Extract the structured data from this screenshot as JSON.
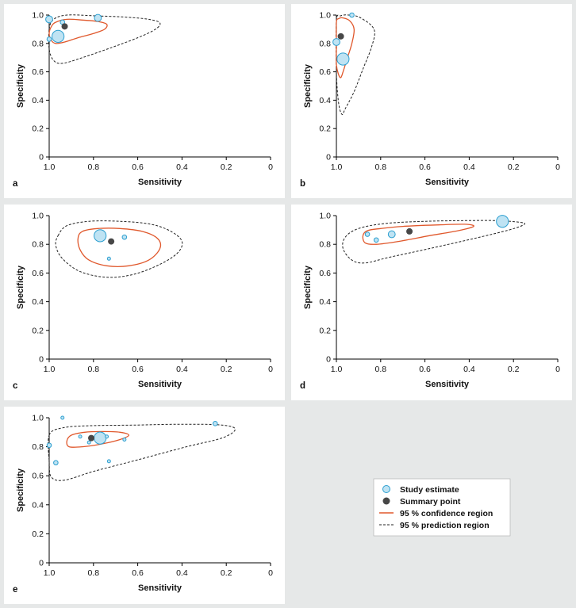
{
  "colors": {
    "background": "#e6e8e8",
    "panel": "#ffffff",
    "study_fill": "#bfe3f3",
    "study_stroke": "#2c9fd0",
    "summary": "#474747",
    "confidence": "#e0582c",
    "prediction": "#222222"
  },
  "legend": {
    "items": [
      {
        "label": "Study estimate",
        "kind": "study"
      },
      {
        "label": "Summary point",
        "kind": "summary"
      },
      {
        "label": "95 % confidence region",
        "kind": "confidence"
      },
      {
        "label": "95 % prediction region",
        "kind": "prediction"
      }
    ]
  },
  "chart_data": [
    {
      "type": "scatter",
      "panel_label": "a",
      "xlabel": "Sensitivity",
      "ylabel": "Specificity",
      "xlim": [
        1.0,
        0
      ],
      "ylim": [
        0,
        1.0
      ],
      "x_ticks": [
        "1.0",
        "0.8",
        "0.6",
        "0.4",
        "0.2",
        "0"
      ],
      "y_ticks": [
        "0",
        "0.2",
        "0.4",
        "0.6",
        "0.8",
        "1.0"
      ],
      "studies": [
        {
          "x": 1.0,
          "y": 0.97,
          "weight": 2
        },
        {
          "x": 0.78,
          "y": 0.98,
          "weight": 2
        },
        {
          "x": 0.94,
          "y": 0.95,
          "weight": 1
        },
        {
          "x": 1.0,
          "y": 0.83,
          "weight": 1
        },
        {
          "x": 0.96,
          "y": 0.85,
          "weight": 4
        }
      ],
      "summary": {
        "x": 0.93,
        "y": 0.92
      },
      "confidence_region": [
        [
          0.99,
          0.92
        ],
        [
          0.97,
          0.95
        ],
        [
          0.92,
          0.97
        ],
        [
          0.85,
          0.965
        ],
        [
          0.78,
          0.955
        ],
        [
          0.74,
          0.935
        ],
        [
          0.75,
          0.9
        ],
        [
          0.8,
          0.87
        ],
        [
          0.87,
          0.84
        ],
        [
          0.93,
          0.81
        ],
        [
          0.97,
          0.8
        ],
        [
          0.99,
          0.82
        ],
        [
          1.0,
          0.87
        ]
      ],
      "prediction_region": [
        [
          1.0,
          0.9
        ],
        [
          0.98,
          0.97
        ],
        [
          0.92,
          1.0
        ],
        [
          0.8,
          0.995
        ],
        [
          0.65,
          0.985
        ],
        [
          0.55,
          0.97
        ],
        [
          0.5,
          0.945
        ],
        [
          0.52,
          0.9
        ],
        [
          0.6,
          0.84
        ],
        [
          0.72,
          0.77
        ],
        [
          0.85,
          0.7
        ],
        [
          0.94,
          0.66
        ],
        [
          0.98,
          0.68
        ],
        [
          1.0,
          0.76
        ]
      ]
    },
    {
      "type": "scatter",
      "panel_label": "b",
      "xlabel": "Sensitivity",
      "ylabel": "Specificity",
      "xlim": [
        1.0,
        0
      ],
      "ylim": [
        0,
        1.0
      ],
      "x_ticks": [
        "1.0",
        "0.8",
        "0.6",
        "0.4",
        "0.2",
        "0"
      ],
      "y_ticks": [
        "0",
        "0.2",
        "0.4",
        "0.6",
        "0.8",
        "1.0"
      ],
      "studies": [
        {
          "x": 0.93,
          "y": 1.0,
          "weight": 1
        },
        {
          "x": 1.0,
          "y": 0.81,
          "weight": 2
        },
        {
          "x": 0.97,
          "y": 0.69,
          "weight": 4
        }
      ],
      "summary": {
        "x": 0.98,
        "y": 0.85
      },
      "confidence_region": [
        [
          1.0,
          0.95
        ],
        [
          0.99,
          0.975
        ],
        [
          0.97,
          0.98
        ],
        [
          0.94,
          0.96
        ],
        [
          0.92,
          0.9
        ],
        [
          0.93,
          0.8
        ],
        [
          0.95,
          0.7
        ],
        [
          0.97,
          0.6
        ],
        [
          0.98,
          0.56
        ],
        [
          0.99,
          0.58
        ],
        [
          1.0,
          0.65
        ],
        [
          1.0,
          0.8
        ]
      ],
      "prediction_region": [
        [
          1.0,
          0.96
        ],
        [
          0.98,
          0.995
        ],
        [
          0.94,
          1.0
        ],
        [
          0.89,
          0.98
        ],
        [
          0.83,
          0.9
        ],
        [
          0.84,
          0.78
        ],
        [
          0.88,
          0.62
        ],
        [
          0.92,
          0.46
        ],
        [
          0.96,
          0.34
        ],
        [
          0.975,
          0.3
        ],
        [
          0.99,
          0.38
        ],
        [
          1.0,
          0.6
        ]
      ]
    },
    {
      "type": "scatter",
      "panel_label": "c",
      "xlabel": "Sensitivity",
      "ylabel": "Specificity",
      "xlim": [
        1.0,
        0
      ],
      "ylim": [
        0,
        1.0
      ],
      "x_ticks": [
        "1.0",
        "0.8",
        "0.6",
        "0.4",
        "0.2",
        "0"
      ],
      "y_ticks": [
        "0",
        "0.2",
        "0.4",
        "0.6",
        "0.8",
        "1.0"
      ],
      "studies": [
        {
          "x": 0.77,
          "y": 0.86,
          "weight": 4
        },
        {
          "x": 0.66,
          "y": 0.85,
          "weight": 1
        },
        {
          "x": 0.73,
          "y": 0.7,
          "weight": 0.5
        }
      ],
      "summary": {
        "x": 0.72,
        "y": 0.82
      },
      "confidence_region": [
        [
          0.87,
          0.84
        ],
        [
          0.85,
          0.89
        ],
        [
          0.78,
          0.91
        ],
        [
          0.68,
          0.91
        ],
        [
          0.58,
          0.89
        ],
        [
          0.51,
          0.84
        ],
        [
          0.5,
          0.77
        ],
        [
          0.55,
          0.69
        ],
        [
          0.64,
          0.65
        ],
        [
          0.74,
          0.65
        ],
        [
          0.82,
          0.69
        ],
        [
          0.86,
          0.76
        ]
      ],
      "prediction_region": [
        [
          0.96,
          0.86
        ],
        [
          0.92,
          0.93
        ],
        [
          0.82,
          0.96
        ],
        [
          0.68,
          0.96
        ],
        [
          0.54,
          0.94
        ],
        [
          0.45,
          0.89
        ],
        [
          0.4,
          0.82
        ],
        [
          0.42,
          0.74
        ],
        [
          0.5,
          0.66
        ],
        [
          0.62,
          0.59
        ],
        [
          0.74,
          0.57
        ],
        [
          0.86,
          0.61
        ],
        [
          0.94,
          0.7
        ],
        [
          0.97,
          0.79
        ]
      ]
    },
    {
      "type": "scatter",
      "panel_label": "d",
      "xlabel": "Sensitivity",
      "ylabel": "Specificity",
      "xlim": [
        1.0,
        0
      ],
      "ylim": [
        0,
        1.0
      ],
      "x_ticks": [
        "1.0",
        "0.8",
        "0.6",
        "0.4",
        "0.2",
        "0"
      ],
      "y_ticks": [
        "0",
        "0.2",
        "0.4",
        "0.6",
        "0.8",
        "1.0"
      ],
      "studies": [
        {
          "x": 0.25,
          "y": 0.96,
          "weight": 4
        },
        {
          "x": 0.75,
          "y": 0.87,
          "weight": 2
        },
        {
          "x": 0.86,
          "y": 0.87,
          "weight": 1
        },
        {
          "x": 0.82,
          "y": 0.83,
          "weight": 1
        }
      ],
      "summary": {
        "x": 0.67,
        "y": 0.89
      },
      "confidence_region": [
        [
          0.88,
          0.86
        ],
        [
          0.86,
          0.895
        ],
        [
          0.8,
          0.91
        ],
        [
          0.7,
          0.925
        ],
        [
          0.55,
          0.935
        ],
        [
          0.42,
          0.94
        ],
        [
          0.38,
          0.925
        ],
        [
          0.45,
          0.895
        ],
        [
          0.58,
          0.86
        ],
        [
          0.72,
          0.82
        ],
        [
          0.82,
          0.8
        ],
        [
          0.87,
          0.81
        ]
      ],
      "prediction_region": [
        [
          0.96,
          0.85
        ],
        [
          0.9,
          0.91
        ],
        [
          0.78,
          0.945
        ],
        [
          0.6,
          0.96
        ],
        [
          0.42,
          0.965
        ],
        [
          0.28,
          0.965
        ],
        [
          0.18,
          0.955
        ],
        [
          0.15,
          0.94
        ],
        [
          0.22,
          0.9
        ],
        [
          0.38,
          0.84
        ],
        [
          0.58,
          0.77
        ],
        [
          0.76,
          0.71
        ],
        [
          0.87,
          0.67
        ],
        [
          0.93,
          0.69
        ],
        [
          0.97,
          0.77
        ]
      ]
    },
    {
      "type": "scatter",
      "panel_label": "e",
      "xlabel": "Sensitivity",
      "ylabel": "Specificity",
      "xlim": [
        1.0,
        0
      ],
      "ylim": [
        0,
        1.0
      ],
      "x_ticks": [
        "1.0",
        "0.8",
        "0.6",
        "0.4",
        "0.2",
        "0"
      ],
      "y_ticks": [
        "0",
        "0.2",
        "0.4",
        "0.6",
        "0.8",
        "1.0"
      ],
      "studies": [
        {
          "x": 0.94,
          "y": 1.0,
          "weight": 0.5
        },
        {
          "x": 0.25,
          "y": 0.96,
          "weight": 1
        },
        {
          "x": 0.77,
          "y": 0.86,
          "weight": 4
        },
        {
          "x": 0.86,
          "y": 0.87,
          "weight": 0.5
        },
        {
          "x": 0.74,
          "y": 0.87,
          "weight": 0.5
        },
        {
          "x": 0.66,
          "y": 0.85,
          "weight": 0.5
        },
        {
          "x": 1.0,
          "y": 0.81,
          "weight": 1
        },
        {
          "x": 0.97,
          "y": 0.69,
          "weight": 1
        },
        {
          "x": 0.73,
          "y": 0.7,
          "weight": 0.5
        },
        {
          "x": 0.82,
          "y": 0.83,
          "weight": 0.5
        }
      ],
      "summary": {
        "x": 0.81,
        "y": 0.86
      },
      "confidence_region": [
        [
          0.92,
          0.84
        ],
        [
          0.9,
          0.88
        ],
        [
          0.84,
          0.9
        ],
        [
          0.76,
          0.905
        ],
        [
          0.68,
          0.9
        ],
        [
          0.64,
          0.88
        ],
        [
          0.68,
          0.85
        ],
        [
          0.76,
          0.82
        ],
        [
          0.85,
          0.8
        ],
        [
          0.91,
          0.8
        ]
      ],
      "prediction_region": [
        [
          1.0,
          0.88
        ],
        [
          0.94,
          0.93
        ],
        [
          0.82,
          0.945
        ],
        [
          0.6,
          0.95
        ],
        [
          0.4,
          0.955
        ],
        [
          0.22,
          0.95
        ],
        [
          0.16,
          0.92
        ],
        [
          0.22,
          0.86
        ],
        [
          0.38,
          0.8
        ],
        [
          0.6,
          0.71
        ],
        [
          0.8,
          0.63
        ],
        [
          0.93,
          0.57
        ],
        [
          0.99,
          0.59
        ],
        [
          1.0,
          0.7
        ]
      ]
    }
  ]
}
